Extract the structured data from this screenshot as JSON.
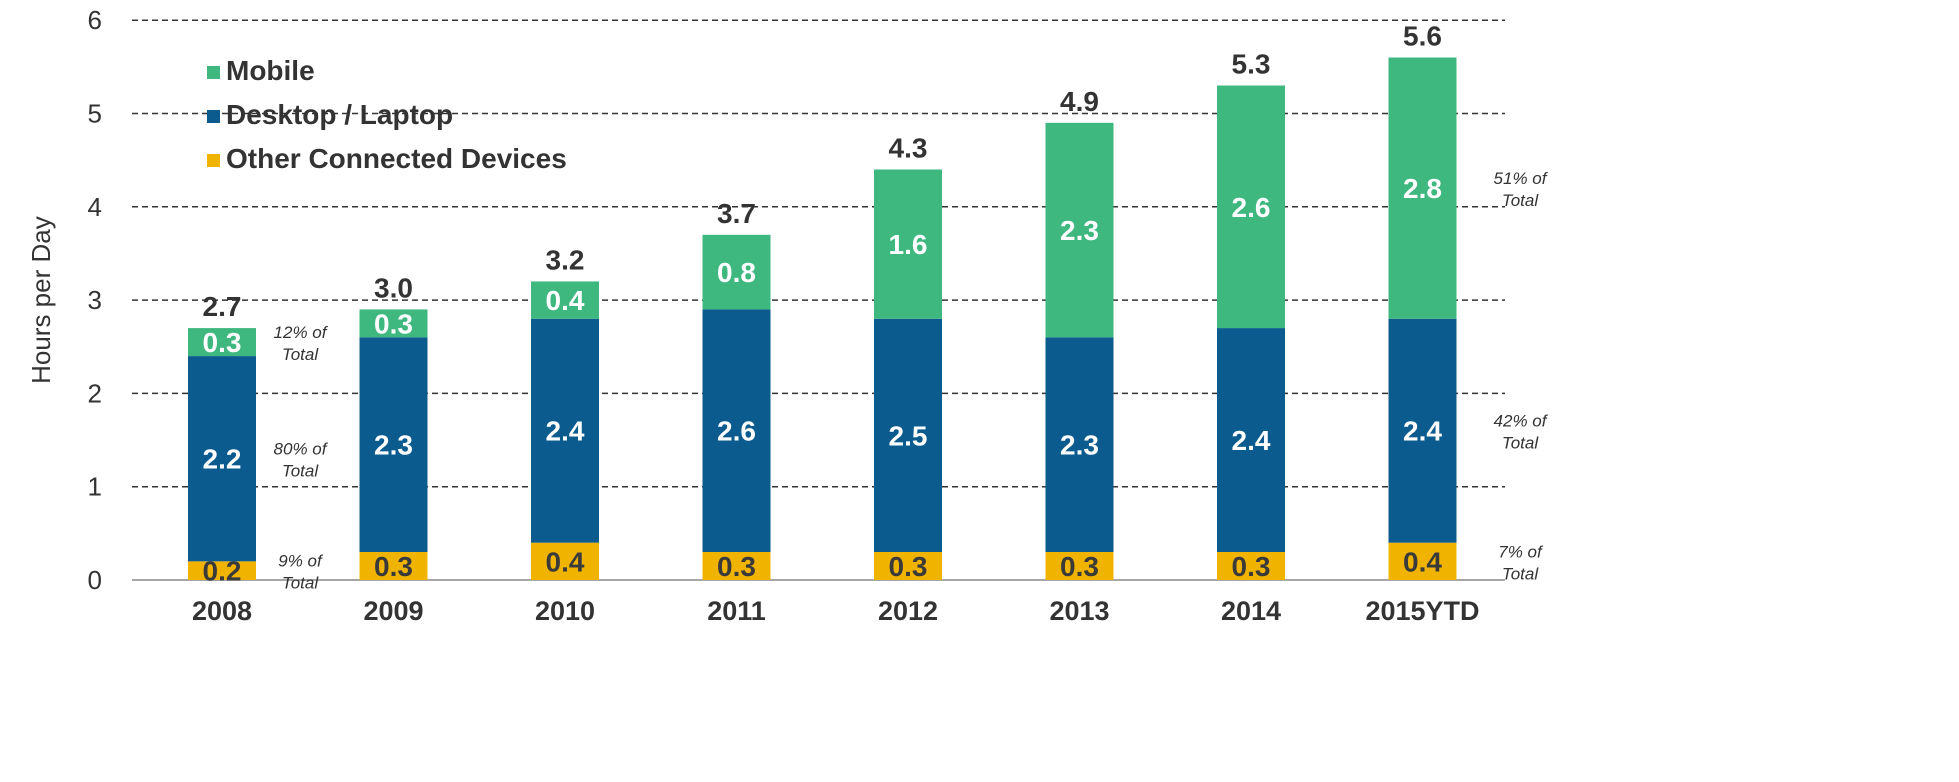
{
  "chart_data": {
    "type": "bar",
    "stacked": true,
    "ylabel": "Hours per Day",
    "ylim": [
      0,
      6
    ],
    "yticks": [
      0,
      1,
      2,
      3,
      4,
      5,
      6
    ],
    "grid": true,
    "legend_position": "top-left",
    "categories": [
      "2008",
      "2009",
      "2010",
      "2011",
      "2012",
      "2013",
      "2014",
      "2015YTD"
    ],
    "series": [
      {
        "name": "Other Connected Devices",
        "color": "#f0b400",
        "values": [
          0.2,
          0.3,
          0.4,
          0.3,
          0.3,
          0.3,
          0.3,
          0.4
        ]
      },
      {
        "name": "Desktop / Laptop",
        "color": "#0b5b8e",
        "values": [
          2.2,
          2.3,
          2.4,
          2.6,
          2.5,
          2.3,
          2.4,
          2.4
        ]
      },
      {
        "name": "Mobile",
        "color": "#3fb87f",
        "values": [
          0.3,
          0.3,
          0.4,
          0.8,
          1.6,
          2.3,
          2.6,
          2.8
        ]
      }
    ],
    "totals": [
      "2.7",
      "3.0",
      "3.2",
      "3.7",
      "4.3",
      "4.9",
      "5.3",
      "5.6"
    ],
    "legend_order": [
      "Mobile",
      "Desktop / Laptop",
      "Other Connected Devices"
    ],
    "annotations_2008": [
      {
        "series": "Mobile",
        "lines": [
          "12% of",
          "Total"
        ]
      },
      {
        "series": "Desktop / Laptop",
        "lines": [
          "80% of",
          "Total"
        ]
      },
      {
        "series": "Other Connected Devices",
        "lines": [
          "9% of",
          "Total"
        ]
      }
    ],
    "annotations_2015": [
      {
        "series": "Mobile",
        "lines": [
          "51% of",
          "Total"
        ]
      },
      {
        "series": "Desktop / Laptop",
        "lines": [
          "42% of",
          "Total"
        ]
      },
      {
        "series": "Other Connected Devices",
        "lines": [
          "7% of",
          "Total"
        ]
      }
    ]
  }
}
